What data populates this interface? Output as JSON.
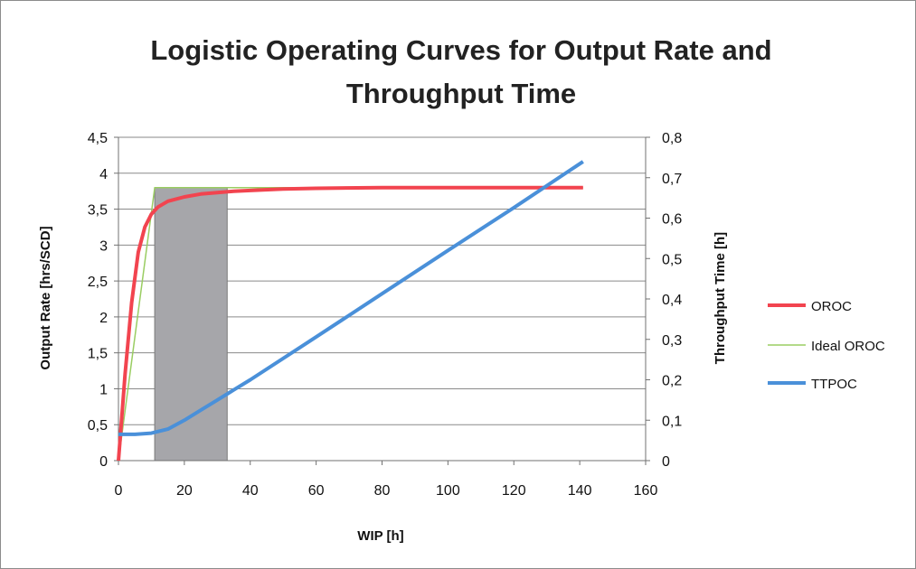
{
  "chart_data": {
    "type": "line",
    "title": "Logistic Operating Curves for Output Rate and Throughput Time",
    "title_lines": [
      "Logistic Operating Curves for Output Rate and",
      "Throughput Time"
    ],
    "xlabel": "WIP [h]",
    "ylabel": "Output Rate [hrs/SCD]",
    "y2label": "Throughput Time [h]",
    "xlim": [
      0,
      160
    ],
    "ylim": [
      0,
      4.5
    ],
    "y2lim": [
      0,
      0.8
    ],
    "x_ticks": [
      "0",
      "20",
      "40",
      "60",
      "80",
      "100",
      "120",
      "140",
      "160"
    ],
    "y_ticks": [
      "0",
      "0,5",
      "1",
      "1,5",
      "2",
      "2,5",
      "3",
      "3,5",
      "4",
      "4,5"
    ],
    "y2_ticks": [
      "0",
      "0,1",
      "0,2",
      "0,3",
      "0,4",
      "0,5",
      "0,6",
      "0,7",
      "0,8"
    ],
    "grid": true,
    "legend_position": "right",
    "shaded_region": {
      "x": [
        11,
        33
      ],
      "y": [
        0,
        3.8
      ],
      "color": "#a6a6aa"
    },
    "series": [
      {
        "name": "OROC",
        "axis": "left",
        "color": "#f2444f",
        "x": [
          0,
          2,
          4,
          6,
          8,
          10,
          12,
          15,
          20,
          25,
          30,
          35,
          40,
          50,
          60,
          80,
          100,
          120,
          141
        ],
        "y": [
          0,
          1.2,
          2.2,
          2.9,
          3.25,
          3.43,
          3.53,
          3.61,
          3.67,
          3.71,
          3.73,
          3.75,
          3.76,
          3.78,
          3.79,
          3.8,
          3.8,
          3.8,
          3.8
        ]
      },
      {
        "name": "Ideal OROC",
        "axis": "left",
        "color": "#9acd62",
        "x": [
          0,
          11,
          141
        ],
        "y": [
          0,
          3.8,
          3.8
        ]
      },
      {
        "name": "TTPOC",
        "axis": "right",
        "color": "#4a90d9",
        "x": [
          0,
          5,
          10,
          15,
          20,
          25,
          30,
          35,
          40,
          60,
          80,
          100,
          120,
          141
        ],
        "y": [
          0.065,
          0.065,
          0.068,
          0.078,
          0.1,
          0.125,
          0.15,
          0.175,
          0.2,
          0.306,
          0.413,
          0.52,
          0.626,
          0.74
        ]
      }
    ]
  }
}
